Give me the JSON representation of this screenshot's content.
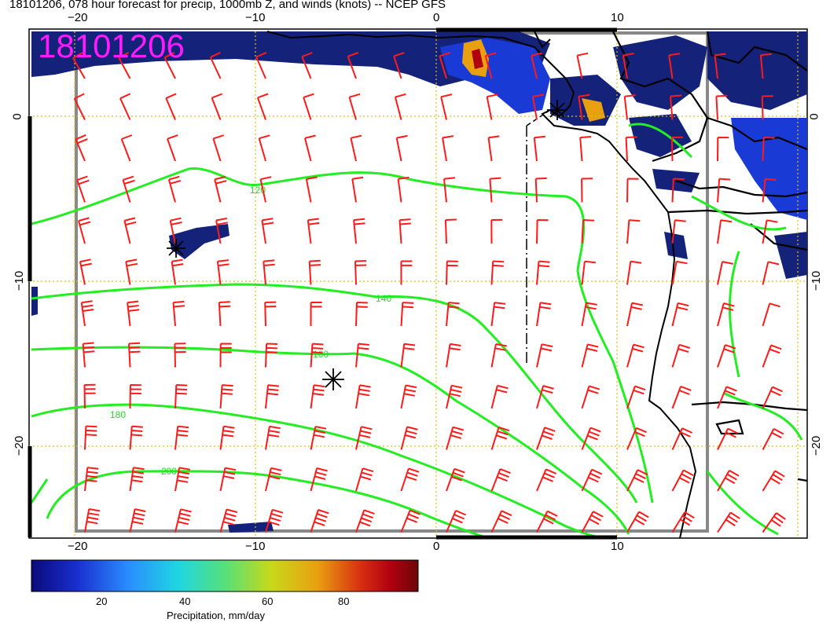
{
  "title": "18101206, 078 hour forecast for precip, 1000mb Z, and winds (knots) -- NCEP GFS",
  "stamp": "18101206",
  "axes": {
    "top_ticks": [
      "−20",
      "−10",
      "0",
      "10"
    ],
    "bottom_ticks": [
      "−20",
      "−10",
      "0",
      "10"
    ],
    "left_ticks": [
      "0",
      "−10",
      "−20"
    ],
    "right_ticks": [
      "0",
      "−10",
      "−20"
    ]
  },
  "contours": {
    "labels": [
      "120",
      "140",
      "160",
      "180",
      "200"
    ]
  },
  "colorbar": {
    "title": "Precipitation, mm/day",
    "tick_labels": [
      "20",
      "40",
      "60",
      "80"
    ],
    "colors": [
      "#0a0a7a",
      "#1a2fd0",
      "#2a8cff",
      "#1fd6e0",
      "#55e07a",
      "#c8d81a",
      "#e8a010",
      "#d83010",
      "#b00010",
      "#6a0808"
    ]
  },
  "markers": {
    "symbol": "asterisk"
  },
  "colors": {
    "wind_barbs": "#ff1a1a",
    "contours": "#22ee22",
    "precip_dark": "#14227a",
    "gridlines": "#d8c020",
    "stamp": "#ff1aff"
  }
}
